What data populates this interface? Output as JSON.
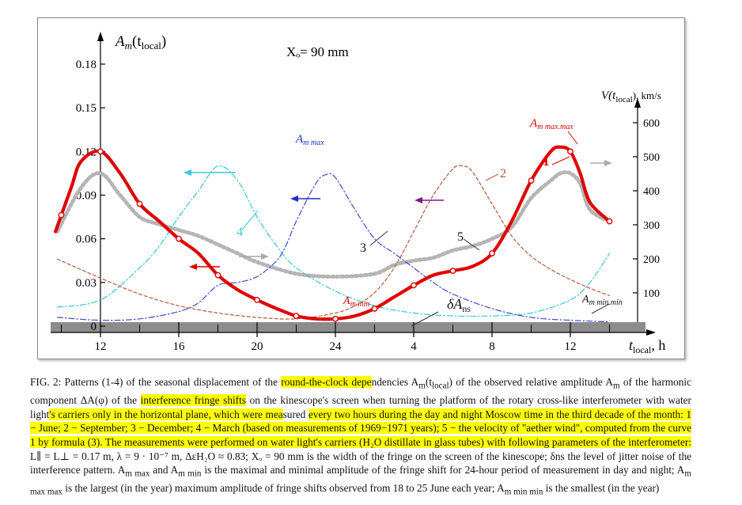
{
  "chart_data": {
    "type": "line",
    "title": "Xₒ= 90 mm",
    "ylabel_left": "A",
    "ylabel_left_sub": "m",
    "ylabel_left_arg": "(t",
    "ylabel_left_arg_sub": "local",
    "ylabel_left_close": ")",
    "ylabel_right": "V(t",
    "ylabel_right_sub": "local",
    "ylabel_right_unit": "), km/s",
    "xlabel": "t",
    "xlabel_sub": "local",
    "xlabel_unit": ", h",
    "x_ticks": [
      "12",
      "16",
      "20",
      "24",
      "4",
      "8",
      "12"
    ],
    "x_tick_hours": [
      12,
      16,
      20,
      24,
      28,
      32,
      36
    ],
    "xlim": [
      9.5,
      38
    ],
    "y_left_ticks": [
      "0",
      "0.03",
      "0.06",
      "0.09",
      "0.12",
      "0.15",
      "0.18"
    ],
    "y_left_tick_values": [
      0,
      0.03,
      0.06,
      0.09,
      0.12,
      0.15,
      0.18
    ],
    "ylim_left": [
      0,
      0.18
    ],
    "y_right_ticks": [
      "100",
      "200",
      "300",
      "400",
      "500",
      "600"
    ],
    "y_right_tick_values": [
      100,
      200,
      300,
      400,
      500,
      600
    ],
    "series": [
      {
        "name": "1",
        "color": "#e00000",
        "style": "solid",
        "x": [
          9.7,
          10.5,
          11,
          12,
          13,
          14,
          15,
          16,
          17,
          18,
          19,
          20,
          21,
          22,
          23,
          24,
          25,
          26,
          27,
          28,
          29,
          30,
          31,
          32,
          33,
          34,
          35,
          35.5,
          36,
          36.5,
          37,
          38
        ],
        "y": [
          0.065,
          0.095,
          0.113,
          0.12,
          0.105,
          0.084,
          0.072,
          0.06,
          0.05,
          0.035,
          0.025,
          0.018,
          0.012,
          0.007,
          0.005,
          0.005,
          0.007,
          0.012,
          0.02,
          0.028,
          0.035,
          0.038,
          0.041,
          0.05,
          0.072,
          0.1,
          0.12,
          0.123,
          0.12,
          0.105,
          0.085,
          0.072
        ]
      },
      {
        "name": "2",
        "color": "#b45a3c",
        "style": "dashed",
        "x": [
          9.8,
          12,
          14,
          16,
          18,
          20,
          22,
          24,
          25,
          26,
          27,
          28,
          29,
          30,
          30.5,
          31,
          32,
          33,
          34,
          35,
          36,
          37,
          38
        ],
        "y": [
          0.046,
          0.033,
          0.022,
          0.014,
          0.009,
          0.006,
          0.005,
          0.009,
          0.014,
          0.023,
          0.04,
          0.065,
          0.09,
          0.108,
          0.11,
          0.106,
          0.084,
          0.062,
          0.048,
          0.039,
          0.032,
          0.026,
          0.021
        ]
      },
      {
        "name": "3",
        "color": "#3a4ccf",
        "style": "dashdot",
        "x": [
          9.8,
          12,
          14,
          16,
          17,
          18,
          19,
          20,
          21,
          21.5,
          22,
          23,
          23.5,
          24,
          25,
          26,
          27,
          28,
          29,
          30,
          32,
          34,
          36,
          38
        ],
        "y": [
          0.006,
          0.004,
          0.005,
          0.01,
          0.016,
          0.028,
          0.03,
          0.034,
          0.045,
          0.056,
          0.072,
          0.098,
          0.104,
          0.102,
          0.08,
          0.06,
          0.05,
          0.04,
          0.03,
          0.022,
          0.012,
          0.006,
          0.004,
          0.003
        ]
      },
      {
        "name": "4",
        "color": "#35c8d8",
        "style": "dashdot",
        "x": [
          9.8,
          12,
          14,
          15,
          16,
          17,
          18,
          19,
          20,
          21,
          22,
          24,
          26,
          28,
          30,
          32,
          34,
          36,
          37,
          38
        ],
        "y": [
          0.013,
          0.018,
          0.04,
          0.055,
          0.075,
          0.093,
          0.11,
          0.1,
          0.075,
          0.055,
          0.04,
          0.024,
          0.014,
          0.009,
          0.007,
          0.007,
          0.009,
          0.018,
          0.03,
          0.05
        ]
      },
      {
        "name": "5",
        "color": "#b5b5b5",
        "style": "dotted",
        "x": [
          9.8,
          11,
          12,
          13,
          14,
          15,
          16,
          17,
          18,
          19,
          20,
          22,
          24,
          26,
          27,
          28,
          29,
          30,
          31,
          32,
          33,
          34,
          35,
          35.5,
          36,
          36.5,
          37,
          38
        ],
        "y": [
          0.065,
          0.095,
          0.105,
          0.09,
          0.075,
          0.07,
          0.066,
          0.062,
          0.056,
          0.05,
          0.044,
          0.036,
          0.034,
          0.036,
          0.042,
          0.045,
          0.047,
          0.052,
          0.055,
          0.06,
          0.068,
          0.088,
          0.1,
          0.105,
          0.105,
          0.098,
          0.08,
          0.072
        ]
      }
    ],
    "curve_labels": {
      "c1": "1",
      "c2": "2",
      "c3": "3",
      "c4": "4",
      "c5": "5"
    },
    "annotations": {
      "am_max_max": "A",
      "am_max_max_sub": "m max.max",
      "am_max": "A",
      "am_max_sub": "m max",
      "am_min": "A",
      "am_min_sub": "m min",
      "am_min_min": "A",
      "am_min_min_sub": "m min.min",
      "delta": "δA",
      "delta_sub": "ns"
    },
    "arrow_colors": {
      "cyan": "#35c8d8",
      "blue": "#1a2ec8",
      "purple": "#7a1a8a",
      "red": "#e00000",
      "gray": "#aaaaaa"
    },
    "grid": false
  },
  "caption": {
    "p1": "FIG. 2: Patterns (1-4) of the seasonal displacement of the ",
    "h1": "round-the-clock depe",
    "p2": "ndencies A",
    "p2_sub": "m",
    "p3": "(t",
    "p3_sub": "local",
    "p4": ") of the observed relative amplitude A",
    "p4_sub": "m",
    "p5": " of the harmonic component ΔA(φ) of the ",
    "h2": "interference fringe shifts",
    "p6": " on the kinescope's screen when turning the platform of the rotary cross-like interferometer with water light",
    "h3": "'s carriers only in the horizontal plane, which were mea",
    "p7": "sured ",
    "h4": "every two hours during the day and night Moscow time in the third decade of the month: 1 − June; 2 − September; 3 − December; 4 − March (based on measurements of 1969−1971 years); 5 − the velocity of \"aether wind\", computed from the curve 1 by formula (3). The measurements were performed on water light's carriers (H₂O distillate in glass tubes) with following parameters of the interferometer:",
    "p8": " L∥ = L⊥ = 0.17 m, λ = 9 · 10⁻⁷ m, ΔεH₂O ≈ 0.83; Xₒ = 90 mm is the width of the fringe on the screen of the kinescope; δns the level of jitter noise of the interference pattern. A",
    "p8_sub": "m max",
    "p9": " and A",
    "p9_sub": "m min",
    "p10": " is the maximal and minimal amplitude of the fringe shift for 24-hour period of measurement in day and night; A",
    "p10_sub": "m max max",
    "p11": " is the largest (in the year) maximum amplitude of fringe shifts observed from 18 to 25 June each year; A",
    "p11_sub": "m min min",
    "p12": " is the smallest (in the year)"
  }
}
